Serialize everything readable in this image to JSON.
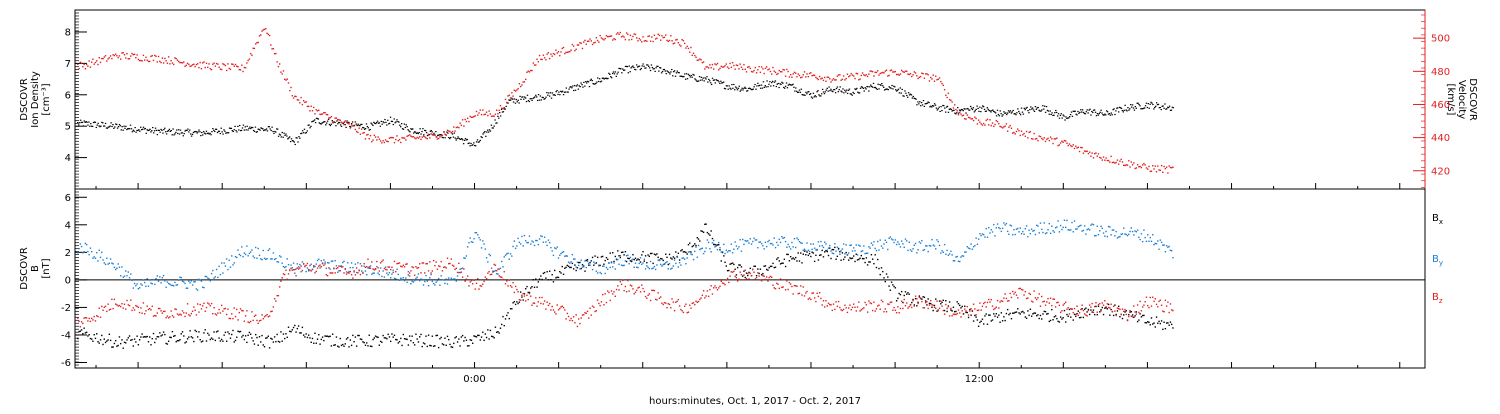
{
  "colors": {
    "axis": "#000000",
    "density": "#000000",
    "velocity": "#e02020",
    "bx": "#000000",
    "by": "#1a7fd4",
    "bz": "#e02020"
  },
  "xlabel": "hours:minutes, Oct.  1, 2017 - Oct.  2, 2017",
  "chart_data": [
    {
      "type": "scatter",
      "ylabel_lines": [
        "DSCOVR",
        "Ion Density",
        "[cm⁻³]"
      ],
      "y2label_lines": [
        "DSCOVR",
        "Velocity",
        "[km/s]"
      ],
      "x_unit": "hours since 2017-10-01 00:00",
      "xlim": [
        -9.5,
        22.6
      ],
      "x_ticks": [
        0,
        12
      ],
      "x_tick_labels": [
        "0:00",
        "12:00"
      ],
      "ylim": [
        3.0,
        8.7
      ],
      "y_ticks": [
        4,
        5,
        6,
        7,
        8
      ],
      "y2lim": [
        409,
        517
      ],
      "y2_ticks": [
        420,
        440,
        460,
        480,
        500
      ],
      "series": [
        {
          "axis": "left",
          "x": [
            -9.3,
            -8.5,
            -7.5,
            -6.5,
            -5.5,
            -4.8,
            -4.3,
            -3.8,
            -3.2,
            -2.5,
            -2.0,
            -1.5,
            -1.0,
            -0.5,
            0.0,
            0.4,
            0.8,
            1.2,
            1.8,
            2.5,
            3.0,
            3.5,
            4.0,
            4.5,
            5.0,
            5.5,
            6.0,
            6.5,
            7.0,
            7.5,
            8.0,
            8.5,
            9.0,
            9.5,
            10.0,
            10.5,
            11.0,
            11.5,
            12.0,
            12.5,
            13.0,
            13.5,
            14.0,
            14.5,
            15.0,
            15.5,
            16.0,
            16.6
          ],
          "y": [
            5.1,
            5.0,
            4.85,
            4.8,
            4.95,
            4.9,
            4.5,
            5.2,
            5.1,
            5.0,
            5.2,
            4.9,
            4.8,
            4.7,
            4.4,
            5.0,
            5.8,
            5.9,
            6.0,
            6.3,
            6.5,
            6.8,
            6.9,
            6.8,
            6.6,
            6.5,
            6.3,
            6.2,
            6.4,
            6.3,
            6.0,
            6.2,
            6.1,
            6.3,
            6.25,
            5.8,
            5.6,
            5.5,
            5.6,
            5.4,
            5.5,
            5.6,
            5.3,
            5.5,
            5.4,
            5.6,
            5.7,
            5.6
          ]
        },
        {
          "axis": "right",
          "x": [
            -9.3,
            -8.5,
            -7.5,
            -6.5,
            -5.5,
            -5.0,
            -4.7,
            -4.3,
            -4.0,
            -3.7,
            -3.2,
            -2.8,
            -2.5,
            -2.0,
            -1.5,
            -1.0,
            -0.5,
            0.0,
            0.5,
            1.0,
            1.5,
            2.0,
            2.5,
            3.0,
            3.5,
            4.0,
            4.5,
            5.0,
            5.5,
            6.0,
            6.5,
            7.0,
            7.5,
            8.0,
            8.5,
            9.0,
            9.5,
            10.0,
            10.5,
            11.0,
            11.5,
            12.0,
            12.5,
            13.0,
            13.5,
            14.0,
            14.5,
            15.0,
            15.5,
            16.0,
            16.6
          ],
          "y": [
            484,
            490,
            488,
            484,
            482,
            508,
            486,
            465,
            460,
            455,
            450,
            445,
            440,
            439,
            440,
            441,
            445,
            455,
            455,
            470,
            488,
            492,
            496,
            500,
            502,
            500,
            501,
            497,
            482,
            484,
            482,
            481,
            479,
            478,
            476,
            477,
            479,
            480,
            478,
            476,
            455,
            450,
            448,
            443,
            440,
            437,
            432,
            428,
            425,
            422,
            421
          ]
        }
      ]
    },
    {
      "type": "scatter",
      "ylabel_lines": [
        "DSCOVR",
        "B",
        "[nT]"
      ],
      "xlim": [
        -9.5,
        22.6
      ],
      "x_ticks": [
        0,
        12
      ],
      "x_tick_labels": [
        "0:00",
        "12:00"
      ],
      "ylim": [
        -6.4,
        6.6
      ],
      "y_ticks": [
        -6,
        -4,
        -2,
        0,
        2,
        4,
        6
      ],
      "zero_line": 0,
      "series": [
        {
          "name": "Bx",
          "legend_base": "B",
          "legend_sub": "x",
          "x": [
            -9.3,
            -8.5,
            -7.5,
            -6.5,
            -5.5,
            -4.8,
            -4.3,
            -3.8,
            -3.2,
            -2.5,
            -2.0,
            -1.5,
            -1.0,
            -0.5,
            0.0,
            0.5,
            1.0,
            1.5,
            2.0,
            2.5,
            3.0,
            3.5,
            4.0,
            4.5,
            5.0,
            5.5,
            6.0,
            6.5,
            7.0,
            7.5,
            8.0,
            8.5,
            9.0,
            9.5,
            10.0,
            10.5,
            11.0,
            11.5,
            12.0,
            12.5,
            13.0,
            13.5,
            14.0,
            14.5,
            15.0,
            15.5,
            16.0,
            16.6
          ],
          "y": [
            -3.9,
            -4.5,
            -4.2,
            -4.0,
            -4.1,
            -4.5,
            -3.5,
            -4.2,
            -4.4,
            -4.4,
            -4.3,
            -4.3,
            -4.4,
            -4.5,
            -4.3,
            -3.8,
            -1.5,
            0.0,
            0.5,
            1.0,
            1.5,
            1.8,
            1.7,
            1.5,
            2.0,
            3.8,
            1.0,
            0.5,
            1.0,
            1.6,
            1.8,
            2.0,
            1.7,
            1.5,
            -1.0,
            -1.5,
            -1.8,
            -2.0,
            -3.0,
            -2.6,
            -2.4,
            -2.5,
            -2.6,
            -2.2,
            -2.0,
            -2.5,
            -3.0,
            -3.3
          ]
        },
        {
          "name": "By",
          "legend_base": "B",
          "legend_sub": "y",
          "x": [
            -9.3,
            -8.5,
            -8.0,
            -7.5,
            -6.5,
            -5.5,
            -4.8,
            -4.3,
            -3.8,
            -3.2,
            -2.5,
            -2.0,
            -1.5,
            -1.0,
            -0.5,
            0.0,
            0.5,
            1.0,
            1.5,
            2.0,
            2.5,
            3.0,
            3.5,
            4.0,
            4.5,
            5.0,
            5.5,
            6.0,
            6.5,
            7.0,
            7.5,
            8.0,
            8.5,
            9.0,
            9.5,
            10.0,
            10.5,
            11.0,
            11.5,
            12.0,
            12.5,
            13.0,
            13.5,
            14.0,
            14.5,
            15.0,
            15.5,
            16.0,
            16.6
          ],
          "y": [
            2.4,
            1.0,
            -0.5,
            0.0,
            -0.3,
            2.2,
            1.8,
            0.8,
            1.2,
            1.0,
            0.8,
            0.5,
            0.2,
            0.0,
            -0.2,
            3.6,
            0.5,
            2.8,
            3.0,
            2.0,
            1.2,
            0.8,
            1.5,
            1.2,
            1.0,
            1.5,
            2.5,
            2.4,
            2.6,
            2.8,
            2.7,
            2.5,
            2.3,
            2.2,
            2.5,
            2.8,
            2.4,
            2.6,
            1.3,
            3.3,
            3.8,
            3.5,
            3.8,
            4.0,
            3.8,
            3.5,
            3.5,
            3.2,
            2.0
          ]
        },
        {
          "name": "Bz",
          "legend_base": "B",
          "legend_sub": "z",
          "x": [
            -9.3,
            -8.5,
            -7.5,
            -6.5,
            -5.5,
            -5.0,
            -4.5,
            -4.0,
            -3.5,
            -3.0,
            -2.5,
            -2.0,
            -1.5,
            -1.0,
            -0.5,
            0.0,
            0.5,
            1.0,
            1.5,
            2.0,
            2.5,
            3.0,
            3.5,
            4.0,
            4.5,
            5.0,
            5.5,
            6.0,
            6.5,
            7.0,
            7.5,
            8.0,
            8.5,
            9.0,
            9.5,
            10.0,
            10.5,
            11.0,
            11.5,
            12.0,
            12.5,
            13.0,
            13.5,
            14.0,
            14.5,
            15.0,
            15.5,
            16.0,
            16.6
          ],
          "y": [
            -3.0,
            -1.5,
            -2.4,
            -2.0,
            -2.5,
            -3.0,
            0.5,
            1.0,
            0.8,
            0.5,
            1.2,
            1.0,
            0.8,
            1.0,
            1.3,
            -0.5,
            1.0,
            -1.0,
            -1.5,
            -2.2,
            -3.0,
            -1.5,
            -0.3,
            -0.8,
            -1.5,
            -2.0,
            -1.0,
            0.3,
            0.5,
            0.0,
            -0.5,
            -1.0,
            -1.8,
            -2.0,
            -1.8,
            -2.0,
            -1.5,
            -1.8,
            -2.5,
            -2.0,
            -1.5,
            -0.8,
            -1.5,
            -2.0,
            -2.2,
            -1.8,
            -2.5,
            -1.5,
            -2.0
          ]
        }
      ]
    }
  ]
}
